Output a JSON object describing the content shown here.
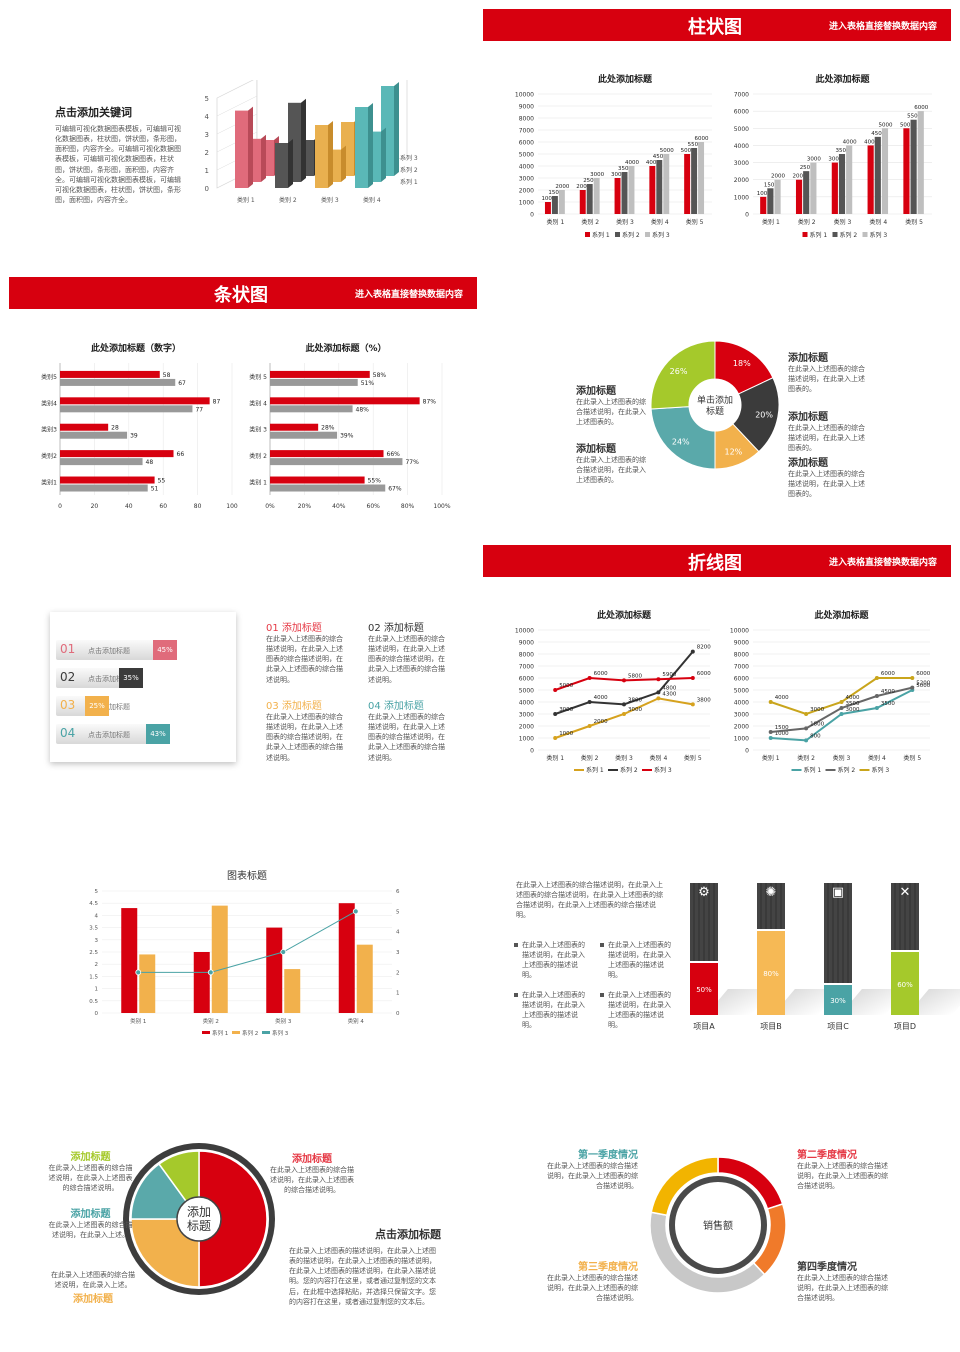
{
  "s1": {
    "title": "点击添加关键词",
    "desc": "可编辑可视化数据图表模板，可编辑可视化数据图表，柱状图，饼状图，条形图，面积图，内容齐全。可编辑可视化数据图表模板，可编辑可视化数据图表，柱状图，饼状图，条形图，面积图，内容齐全。可编辑可视化数据图表模板，可编辑可视化数据图表，柱状图，饼状图，条形图，面积图，内容齐全。",
    "chart3d": {
      "type": "bar",
      "categories": [
        "类别 1",
        "类别 2",
        "类别 3",
        "类别 4"
      ],
      "series": [
        {
          "name": "系列 1",
          "values": [
            4.3,
            2.5,
            3.5,
            4.5
          ]
        },
        {
          "name": "系列 2",
          "values": [
            2.4,
            4.4,
            1.8,
            2.8
          ]
        },
        {
          "name": "系列 3",
          "values": [
            2,
            2,
            3,
            5
          ]
        }
      ],
      "yticks": [
        "0",
        "1",
        "2",
        "3",
        "4",
        "5"
      ]
    }
  },
  "bar_section": {
    "title": "柱状图",
    "subtitle": "进入表格直接替换数据内容",
    "chart_data": [
      {
        "type": "bar",
        "title": "此处添加标题",
        "categories": [
          "类别 1",
          "类别 2",
          "类别 3",
          "类别 4",
          "类别 5"
        ],
        "series": [
          {
            "name": "系列 1",
            "values": [
              1000,
              2000,
              3000,
              4000,
              5000
            ]
          },
          {
            "name": "系列 2",
            "values": [
              1500,
              2500,
              3500,
              4500,
              5500
            ]
          },
          {
            "name": "系列 3",
            "values": [
              2000,
              3000,
              4000,
              5000,
              6000
            ]
          }
        ],
        "ylim": [
          0,
          10000
        ],
        "yticks": [
          "0",
          "1000",
          "2000",
          "3000",
          "4000",
          "5000",
          "6000",
          "7000",
          "8000",
          "9000",
          "10000"
        ],
        "legend": [
          "系列 1",
          "系列 2",
          "系列 3"
        ]
      },
      {
        "type": "bar",
        "title": "此处添加标题",
        "categories": [
          "类别 1",
          "类别 2",
          "类别 3",
          "类别 4",
          "类别 5"
        ],
        "series": [
          {
            "name": "系列 1",
            "values": [
              1000,
              2000,
              3000,
              4000,
              5000
            ]
          },
          {
            "name": "系列 2",
            "values": [
              1500,
              2500,
              3500,
              4500,
              5500
            ]
          },
          {
            "name": "系列 3",
            "values": [
              2000,
              3000,
              4000,
              5000,
              6000
            ]
          }
        ],
        "ylim": [
          0,
          7000
        ],
        "yticks": [
          "0",
          "1000",
          "2000",
          "3000",
          "4000",
          "5000",
          "6000",
          "7000"
        ],
        "legend": [
          "系列 1",
          "系列 2",
          "系列 3"
        ]
      }
    ]
  },
  "hbar_section": {
    "title": "条状图",
    "subtitle": "进入表格直接替换数据内容",
    "chart_data": [
      {
        "type": "bar",
        "title": "此处添加标题（数字）",
        "categories": [
          "类别1",
          "类别2",
          "类别3",
          "类别4",
          "类别5"
        ],
        "series": [
          {
            "values": [
              55,
              66,
              28,
              87,
              58
            ]
          },
          {
            "values": [
              51,
              48,
              39,
              77,
              67
            ]
          }
        ],
        "xticks": [
          "0",
          "20",
          "40",
          "60",
          "80",
          "100"
        ],
        "labels1": [
          "55",
          "66",
          "28",
          "87",
          "58"
        ],
        "labels2": [
          "51",
          "48",
          "39",
          "77",
          "67"
        ]
      },
      {
        "type": "bar",
        "title": "此处添加标题（%）",
        "categories": [
          "类别 1",
          "类别 2",
          "类别 3",
          "类别 4",
          "类别 5"
        ],
        "series": [
          {
            "values": [
              55,
              66,
              28,
              87,
              58
            ]
          },
          {
            "values": [
              67,
              77,
              39,
              48,
              51
            ]
          }
        ],
        "xticks": [
          "0%",
          "20%",
          "40%",
          "60%",
          "80%",
          "100%"
        ],
        "labels1": [
          "55%",
          "66%",
          "28%",
          "87%",
          "58%"
        ],
        "labels2": [
          "67%",
          "77%",
          "39%",
          "48%",
          "51%"
        ]
      }
    ]
  },
  "donut1": {
    "center": "单击添加\n标题",
    "slices": [
      {
        "label": "18%",
        "value": 18,
        "color": "#d7000f"
      },
      {
        "label": "20%",
        "value": 20,
        "color": "#3b3b3b"
      },
      {
        "label": "12%",
        "value": 12,
        "color": "#f2b14c"
      },
      {
        "label": "24%",
        "value": 24,
        "color": "#5aa9aa"
      },
      {
        "label": "26%",
        "value": 26,
        "color": "#a5c92b"
      }
    ],
    "notes": [
      {
        "title": "添加标题",
        "text": "在此录入上述图表的综合描述说明，在此录入上述图表的。"
      },
      {
        "title": "添加标题",
        "text": "在此录入上述图表的综合描述说明，在此录入上述图表的。"
      },
      {
        "title": "添加标题",
        "text": "在此录入上述图表的综合描述说明，在此录入上述图表的。"
      },
      {
        "title": "添加标题",
        "text": "在此录入上述图表的综合描述说明，在此录入上述图表的。"
      },
      {
        "title": "添加标题",
        "text": "在此录入上述图表的综合描述说明，在此录入上述图表的。"
      }
    ]
  },
  "progress": {
    "items": [
      {
        "num": "01",
        "label": "点击添加标题",
        "pct": "45%",
        "color": "#e06b7b"
      },
      {
        "num": "02",
        "label": "点击添加标题",
        "pct": "35%",
        "color": "#3b3b3b"
      },
      {
        "num": "03",
        "label": "点击添加标题",
        "pct": "25%",
        "color": "#f2b14c"
      },
      {
        "num": "04",
        "label": "点击添加标题",
        "pct": "43%",
        "color": "#4aa3a5"
      }
    ],
    "blocks": [
      {
        "title": "01 添加标题",
        "text": "在此录入上述图表的综合描述说明，在此录入上述图表的综合描述说明，在此录入上述图表的综合描述说明。"
      },
      {
        "title": "02 添加标题",
        "text": "在此录入上述图表的综合描述说明，在此录入上述图表的综合描述说明，在此录入上述图表的综合描述说明。"
      },
      {
        "title": "03 添加标题",
        "text": "在此录入上述图表的综合描述说明，在此录入上述图表的综合描述说明，在此录入上述图表的综合描述说明。"
      },
      {
        "title": "04 添加标题",
        "text": "在此录入上述图表的综合描述说明，在此录入上述图表的综合描述说明，在此录入上述图表的综合描述说明。"
      }
    ]
  },
  "line_section": {
    "title": "折线图",
    "subtitle": "进入表格直接替换数据内容",
    "chart_data": [
      {
        "type": "line",
        "title": "此处添加标题",
        "categories": [
          "类别 1",
          "类别 2",
          "类别 3",
          "类别 4",
          "类别 5"
        ],
        "series": [
          {
            "name": "系列 1",
            "values": [
              1000,
              2000,
              3000,
              4300,
              3800
            ],
            "color": "#d6a21e"
          },
          {
            "name": "系列 2",
            "values": [
              3000,
              4000,
              3800,
              4800,
              8200
            ],
            "color": "#333333"
          },
          {
            "name": "系列 3",
            "values": [
              5000,
              6000,
              5800,
              5900,
              6000
            ],
            "color": "#d7000f"
          }
        ],
        "ylim": [
          0,
          10000
        ],
        "yticks": [
          "0",
          "1000",
          "2000",
          "3000",
          "4000",
          "5000",
          "6000",
          "7000",
          "8000",
          "9000",
          "10000"
        ],
        "legend": [
          "系列 1",
          "系列 2",
          "系列 3"
        ]
      },
      {
        "type": "line",
        "title": "此处添加标题",
        "categories": [
          "类别 1",
          "类别 2",
          "类别 3",
          "类别 4",
          "类别 5"
        ],
        "series": [
          {
            "name": "系列 1",
            "values": [
              1000,
              800,
              3000,
              3500,
              5000
            ],
            "color": "#4aa3a5"
          },
          {
            "name": "系列 2",
            "values": [
              1500,
              1800,
              3500,
              4500,
              5200
            ],
            "color": "#666666"
          },
          {
            "name": "系列 3",
            "values": [
              4000,
              3000,
              4000,
              6000,
              6000
            ],
            "color": "#c9a51c"
          }
        ],
        "ylim": [
          0,
          10000
        ],
        "yticks": [
          "0",
          "1000",
          "2000",
          "3000",
          "4000",
          "5000",
          "6000",
          "7000",
          "8000",
          "9000",
          "10000"
        ],
        "legend": [
          "系列 1",
          "系列 2",
          "系列 3"
        ]
      }
    ]
  },
  "combo": {
    "chart_data": {
      "type": "bar",
      "title": "图表标题",
      "categories": [
        "类别 1",
        "类别 2",
        "类别 3",
        "类别 4"
      ],
      "series": [
        {
          "name": "系列 1",
          "values": [
            4.3,
            2.5,
            3.5,
            4.5
          ]
        },
        {
          "name": "系列 2",
          "values": [
            2.4,
            4.4,
            1.8,
            2.8
          ]
        },
        {
          "name": "系列 3",
          "values": [
            2,
            2,
            3,
            5
          ],
          "type": "line"
        }
      ],
      "ylim": [
        0,
        5
      ],
      "y2lim": [
        0,
        6
      ],
      "yticks": [
        "0",
        "0.5",
        "1",
        "1.5",
        "2",
        "2.5",
        "3",
        "3.5",
        "4",
        "4.5",
        "5"
      ],
      "y2ticks": [
        "0",
        "1",
        "2",
        "3",
        "4",
        "5",
        "6"
      ],
      "legend": [
        "系列 1",
        "系列 2",
        "系列 3"
      ]
    }
  },
  "columns": {
    "intro": "在此录入上述图表的综合描述说明，在此录入上述图表的综合描述说明，在此录入上述图表的综合描述说明，在此录入上述图表的综合描述说明。",
    "bullets": [
      "在此录入上述图表的描述说明，在此录入上述图表的描述说明。",
      "在此录入上述图表的描述说明，在此录入上述图表的描述说明。",
      "在此录入上述图表的描述说明，在此录入上述图表的描述说明。",
      "在此录入上述图表的描述说明，在此录入上述图表的描述说明。"
    ],
    "items": [
      {
        "label": "项目A",
        "pct": "50%",
        "value": 50,
        "color": "#d7000f",
        "icon": "gear-icon"
      },
      {
        "label": "项目B",
        "pct": "80%",
        "value": 80,
        "color": "#f6b955",
        "icon": "atom-icon"
      },
      {
        "label": "项目C",
        "pct": "30%",
        "value": 30,
        "color": "#4aa3a5",
        "icon": "photo-icon"
      },
      {
        "label": "项目D",
        "pct": "60%",
        "value": 60,
        "color": "#a5c92b",
        "icon": "tools-icon"
      }
    ]
  },
  "pie2": {
    "center": "添加\n标题",
    "slices": [
      {
        "value": 50,
        "color": "#d7000f"
      },
      {
        "value": 25,
        "color": "#f2b14c"
      },
      {
        "value": 15,
        "color": "#5aa9aa"
      },
      {
        "value": 10,
        "color": "#a5c92b"
      }
    ],
    "notes": [
      {
        "title": "添加标题",
        "text": "在此录入上述图表的综合描述说明，在此录入上述图表的综合描述说明。",
        "color": "#a5c92b"
      },
      {
        "title": "添加标题",
        "text": "在此录入上述图表的综合描述说明，在此录入上述图表的综合描述说明。",
        "color": "#e53945"
      },
      {
        "title": "添加标题",
        "text": "在此录入上述图表的综合描述说明，在此录入上述。",
        "color": "#4aa3a5"
      },
      {
        "title": "添加标题",
        "text": "在此录入上述图表的综合描述说明，在此录入上述。",
        "color": "#f2b14c"
      }
    ],
    "main_title": "点击添加标题",
    "main_text": "在此录入上述图表的描述说明，在此录入上述图表的描述说明，在此录入上述图表的描述说明，在此录入上述图表的描述说明，在此录入描述说明。您的内容打在这里，或者通过复制您的文本后，在此框中选择粘贴，并选择只保留文字。您的内容打在这里，或者通过复制您的文本后。"
  },
  "ring": {
    "center": "销售额",
    "slices": [
      {
        "value": 20,
        "color": "#d7000f"
      },
      {
        "value": 18,
        "color": "#f07a2a"
      },
      {
        "value": 40,
        "color": "#c8c8c8"
      },
      {
        "value": 22,
        "color": "#f2b400"
      }
    ],
    "quarters": [
      {
        "title": "第一季度情况",
        "text": "在此录入上述图表的综合描述说明，在此录入上述图表的综合描述说明。",
        "color": "#4aa3a5"
      },
      {
        "title": "第二季度情况",
        "text": "在此录入上述图表的综合描述说明，在此录入上述图表的综合描述说明。",
        "color": "#e53945"
      },
      {
        "title": "第三季度情况",
        "text": "在此录入上述图表的综合描述说明，在此录入上述图表的综合描述说明。",
        "color": "#f2b14c"
      },
      {
        "title": "第四季度情况",
        "text": "在此录入上述图表的综合描述说明，在此录入上述图表的综合描述说明。",
        "color": "#3b3b3b"
      }
    ]
  }
}
